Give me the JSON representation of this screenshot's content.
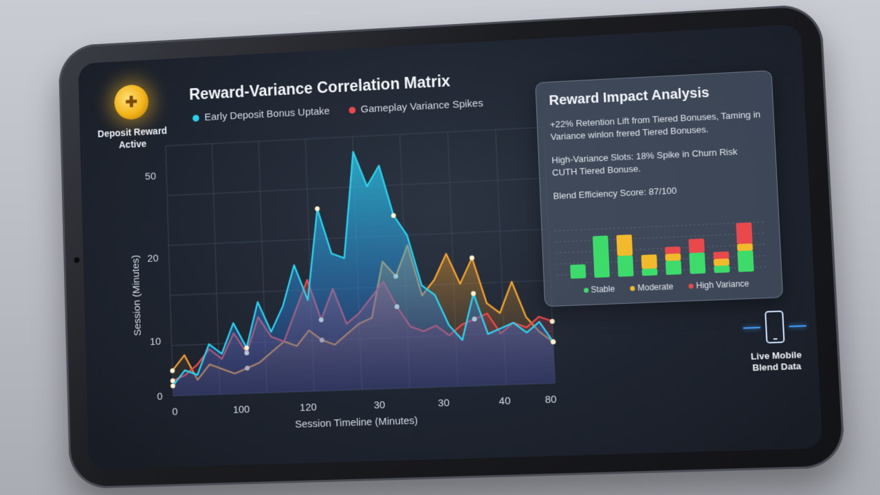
{
  "badge": {
    "icon": "coin-icon",
    "label": "Deposit Reward Active"
  },
  "title": "Reward-Variance Correlation Matrix",
  "legend": [
    {
      "label": "Early Deposit Bonus Uptake",
      "color": "#2ad0ee"
    },
    {
      "label": "Gameplay Variance Spikes",
      "color": "#e9494a"
    }
  ],
  "chart_data": {
    "type": "area",
    "ylabel": "Session (Minutes)",
    "xlabel": "Session Timeline (Minutes)",
    "y_ticks": [
      "50",
      "20",
      "10",
      "0"
    ],
    "x_ticks": [
      "0",
      "100",
      "120",
      "30",
      "30",
      "40",
      "80"
    ],
    "grid": true,
    "series": [
      {
        "name": "Early Deposit Bonus Uptake",
        "color": "#2ad0ee",
        "values": [
          2,
          5,
          4,
          10,
          8,
          14,
          9,
          18,
          12,
          17,
          25,
          18,
          36,
          27,
          26,
          47,
          40,
          44,
          34,
          30,
          20,
          18,
          12,
          9,
          18,
          10,
          11,
          12,
          10,
          12,
          8
        ]
      },
      {
        "name": "Gameplay Variance Spikes",
        "color": "#e9494a",
        "values": [
          3,
          4,
          6,
          9,
          7,
          12,
          8,
          15,
          11,
          10,
          16,
          22,
          14,
          20,
          13,
          15,
          18,
          21,
          16,
          12,
          11,
          12,
          10,
          12,
          13,
          14,
          10,
          12,
          11,
          13,
          12
        ]
      },
      {
        "name": "",
        "color": "#f0a030",
        "values": [
          5,
          8,
          3,
          6,
          5,
          4,
          5,
          6,
          8,
          10,
          9,
          12,
          10,
          9,
          11,
          13,
          14,
          25,
          22,
          28,
          18,
          21,
          26,
          20,
          25,
          16,
          14,
          20,
          13,
          10,
          8
        ]
      }
    ]
  },
  "panel": {
    "title": "Reward Impact Analysis",
    "line1": "+22% Retention Lift from Tiered Bonuses, Taming in Variance winlon frered Tiered Bonuses.",
    "line2": "High-Variance Slots: 18% Spike in Churn Risk CUTH Tiered Bonuse.",
    "line3": "Blend Efficiency Score: 87/100",
    "mini_chart": {
      "type": "bar",
      "bars": [
        {
          "stable": 2,
          "moderate": 0,
          "high": 0
        },
        {
          "stable": 6,
          "moderate": 0,
          "high": 0
        },
        {
          "stable": 3,
          "moderate": 3,
          "high": 0
        },
        {
          "stable": 1,
          "moderate": 2,
          "high": 0
        },
        {
          "stable": 2,
          "moderate": 1,
          "high": 1
        },
        {
          "stable": 3,
          "moderate": 0,
          "high": 2
        },
        {
          "stable": 1,
          "moderate": 1,
          "high": 1
        },
        {
          "stable": 3,
          "moderate": 1,
          "high": 3
        }
      ],
      "legend": [
        "Stable",
        "Moderate",
        "High Variance"
      ],
      "colors": {
        "stable": "#3ddc6a",
        "moderate": "#f2b92a",
        "high": "#e9494a"
      }
    }
  },
  "mobile": {
    "icon": "phone-icon",
    "label": "Live Mobile Blend Data"
  }
}
